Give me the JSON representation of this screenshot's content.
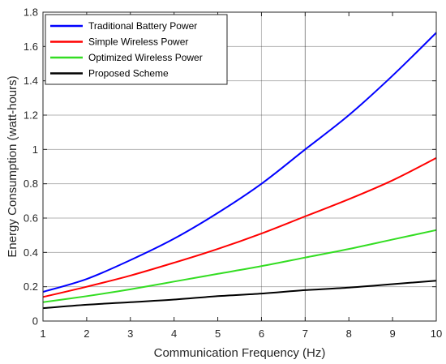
{
  "chart_data": {
    "type": "line",
    "title": "",
    "xlabel": "Communication Frequency (Hz)",
    "ylabel": "Energy Consumption (watt-hours)",
    "xlim": [
      1,
      10
    ],
    "ylim": [
      0,
      1.8
    ],
    "xticks": [
      "1",
      "2",
      "3",
      "4",
      "5",
      "6",
      "7",
      "8",
      "9",
      "10"
    ],
    "yticks": [
      "0",
      "0.2",
      "0.4",
      "0.6",
      "0.8",
      "1",
      "1.2",
      "1.4",
      "1.6",
      "1.8"
    ],
    "grid": "horizontal lines at y-ticks; vertical lines at x=6 and x=7",
    "legend_position": "top-left",
    "x": [
      1,
      2,
      3,
      4,
      5,
      6,
      7,
      8,
      9,
      10
    ],
    "series": [
      {
        "name": "Traditional Battery Power",
        "color": "#0000ff",
        "values": [
          0.17,
          0.245,
          0.355,
          0.48,
          0.63,
          0.8,
          1.0,
          1.2,
          1.43,
          1.68
        ]
      },
      {
        "name": "Simple Wireless Power",
        "color": "#ff0000",
        "values": [
          0.14,
          0.2,
          0.265,
          0.34,
          0.42,
          0.51,
          0.61,
          0.71,
          0.82,
          0.95
        ]
      },
      {
        "name": "Optimized Wireless Power",
        "color": "#33dd22",
        "values": [
          0.11,
          0.145,
          0.185,
          0.23,
          0.275,
          0.32,
          0.37,
          0.42,
          0.475,
          0.53
        ]
      },
      {
        "name": "Proposed Scheme",
        "color": "#000000",
        "values": [
          0.075,
          0.095,
          0.11,
          0.125,
          0.145,
          0.16,
          0.18,
          0.195,
          0.215,
          0.235
        ]
      }
    ]
  }
}
